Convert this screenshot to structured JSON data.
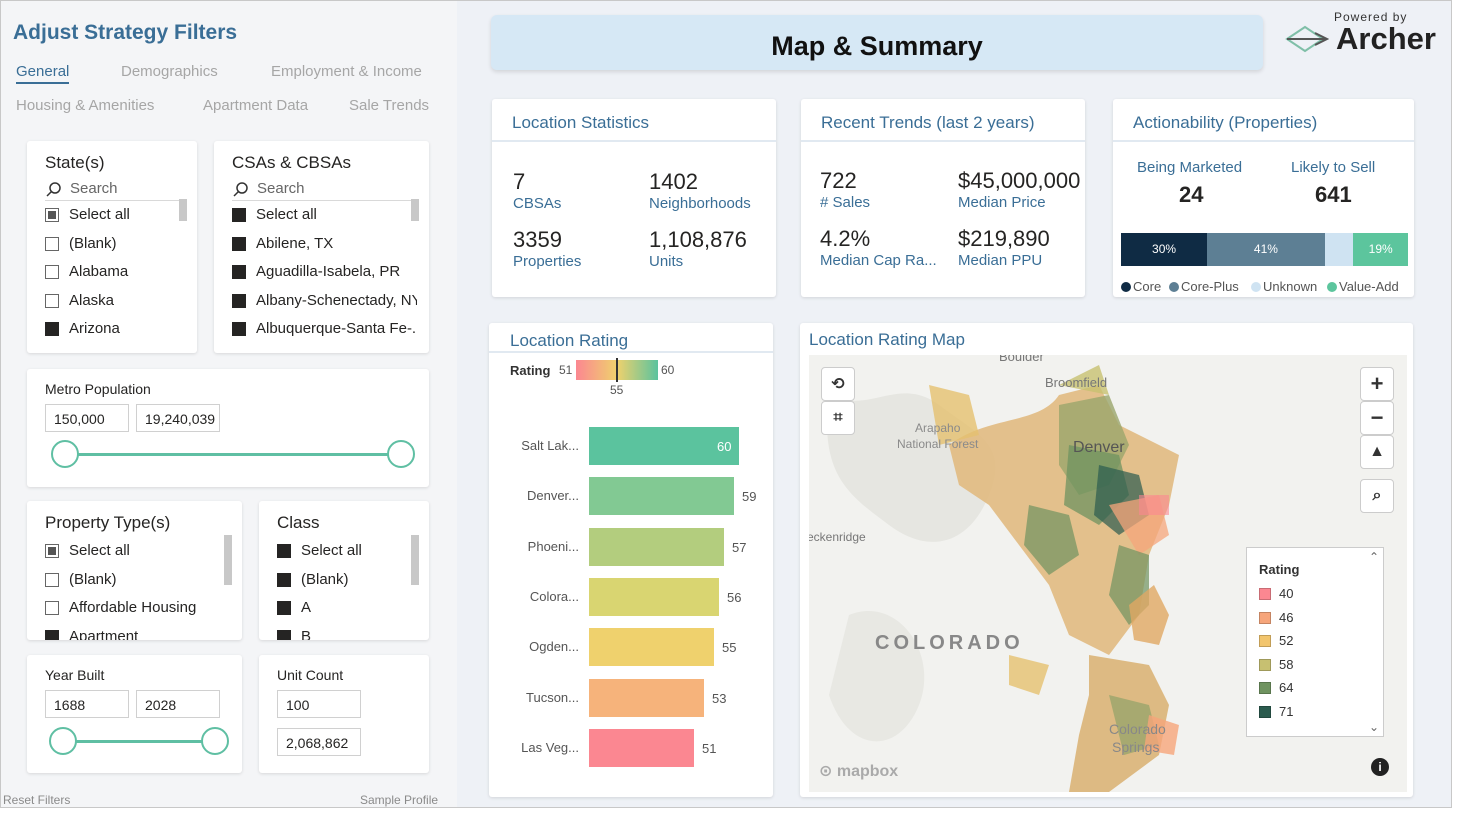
{
  "filters": {
    "title": "Adjust Strategy Filters",
    "tabs": [
      "General",
      "Demographics",
      "Employment & Income",
      "Housing & Amenities",
      "Apartment Data",
      "Sale Trends"
    ],
    "states": {
      "title": "State(s)",
      "search": "Search",
      "items": [
        "Select all",
        "(Blank)",
        "Alabama",
        "Alaska",
        "Arizona"
      ]
    },
    "csas": {
      "title": "CSAs & CBSAs",
      "search": "Search",
      "items": [
        "Select all",
        "Abilene, TX",
        "Aguadilla-Isabela, PR",
        "Albany-Schenectady, NY",
        "Albuquerque-Santa Fe-..."
      ]
    },
    "metro_population": {
      "title": "Metro Population",
      "min": "150,000",
      "max": "19,240,039"
    },
    "property_types": {
      "title": "Property Type(s)",
      "items": [
        "Select all",
        "(Blank)",
        "Affordable Housing",
        "Apartment"
      ]
    },
    "class": {
      "title": "Class",
      "items": [
        "Select all",
        "(Blank)",
        "A",
        "B"
      ]
    },
    "year_built": {
      "title": "Year Built",
      "min": "1688",
      "max": "2028"
    },
    "unit_count": {
      "title": "Unit Count",
      "min": "100",
      "max": "2,068,862"
    },
    "reset": "Reset Filters",
    "sample": "Sample Profile"
  },
  "header": {
    "title": "Map & Summary",
    "powered_by": "Powered by",
    "brand": "Archer"
  },
  "location_stats": {
    "title": "Location Statistics",
    "v1": "7",
    "l1": "CBSAs",
    "v2": "1402",
    "l2": "Neighborhoods",
    "v3": "3359",
    "l3": "Properties",
    "v4": "1,108,876",
    "l4": "Units"
  },
  "recent_trends": {
    "title": "Recent Trends (last 2 years)",
    "v1": "722",
    "l1": "# Sales",
    "v2": "$45,000,000",
    "l2": "Median Price",
    "v3": "4.2%",
    "l3": "Median Cap Ra...",
    "v4": "$219,890",
    "l4": "Median PPU"
  },
  "actionability": {
    "title": "Actionability (Properties)",
    "l1": "Being Marketed",
    "v1": "24",
    "l2": "Likely to Sell",
    "v2": "641",
    "segments": [
      {
        "name": "Core",
        "pct": 30,
        "label": "30%",
        "color": "#0f2b44"
      },
      {
        "name": "Core-Plus",
        "pct": 41,
        "label": "41%",
        "color": "#5d7f94"
      },
      {
        "name": "Unknown",
        "pct": 10,
        "label": "",
        "color": "#cfe3f2"
      },
      {
        "name": "Value-Add",
        "pct": 19,
        "label": "19%",
        "color": "#5cc59d"
      }
    ]
  },
  "location_rating": {
    "title": "Location Rating",
    "rating_label": "Rating",
    "scale_min": "51",
    "scale_max": "60",
    "scale_mid": "55"
  },
  "chart_data": {
    "type": "bar",
    "title": "Location Rating",
    "categories": [
      "Salt Lak...",
      "Denver...",
      "Phoeni...",
      "Colora...",
      "Ogden...",
      "Tucson...",
      "Las Veg..."
    ],
    "values": [
      60,
      59,
      57,
      56,
      55,
      53,
      51
    ],
    "value_labels": [
      "60",
      "59",
      "57",
      "56",
      "55",
      "53",
      "51"
    ],
    "colors": [
      "#5bc39e",
      "#82c993",
      "#b3cd7e",
      "#d9d571",
      "#efd16d",
      "#f6b37b",
      "#fb8791"
    ]
  },
  "map": {
    "title": "Location Rating Map",
    "labels": [
      "Boulder",
      "Broomfield",
      "Arapaho",
      "National Forest",
      "Denver",
      "eckenridge",
      "COLORADO",
      "Colorado",
      "Springs"
    ],
    "attribution": "mapbox",
    "legend_title": "Rating",
    "legend": [
      {
        "value": "40",
        "color": "#fb8791"
      },
      {
        "value": "46",
        "color": "#f6a57b"
      },
      {
        "value": "52",
        "color": "#f2c56d"
      },
      {
        "value": "58",
        "color": "#c7c071"
      },
      {
        "value": "64",
        "color": "#6f9360"
      },
      {
        "value": "71",
        "color": "#2b5b4e"
      }
    ]
  }
}
